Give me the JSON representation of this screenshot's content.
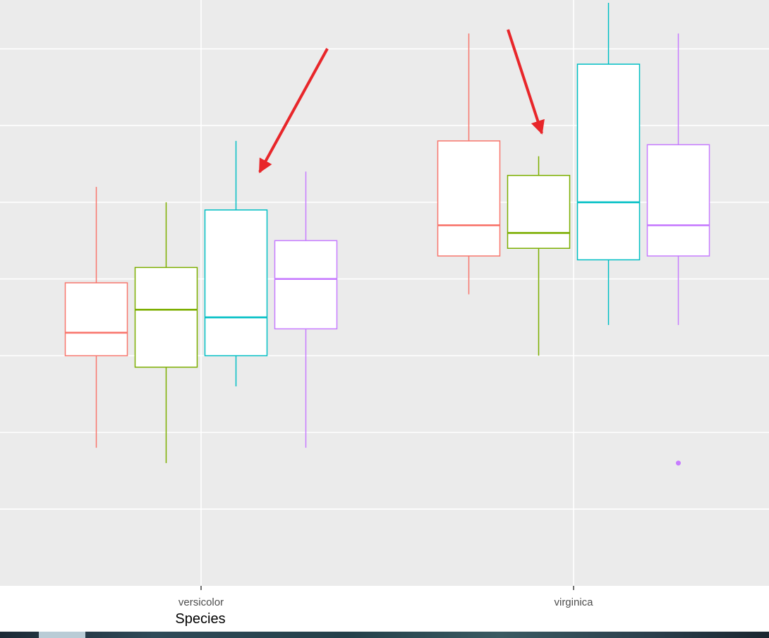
{
  "chart_data": {
    "type": "boxplot",
    "xlabel": "Species",
    "categories": [
      "versicolor",
      "virginica"
    ],
    "series_colors": [
      "#F8766D",
      "#7CAE00",
      "#00BFC4",
      "#C77CFF"
    ],
    "ylim": [
      0,
      7.6
    ],
    "grid": true,
    "boxes": [
      {
        "category": "versicolor",
        "series_index": 0,
        "lower_whisker": 1.8,
        "q1": 3.0,
        "median": 3.3,
        "q3": 3.95,
        "upper_whisker": 5.2
      },
      {
        "category": "versicolor",
        "series_index": 1,
        "lower_whisker": 1.6,
        "q1": 2.85,
        "median": 3.6,
        "q3": 4.15,
        "upper_whisker": 5.0
      },
      {
        "category": "versicolor",
        "series_index": 2,
        "lower_whisker": 2.6,
        "q1": 3.0,
        "median": 3.5,
        "q3": 4.9,
        "upper_whisker": 5.8
      },
      {
        "category": "versicolor",
        "series_index": 3,
        "lower_whisker": 1.8,
        "q1": 3.35,
        "median": 4.0,
        "q3": 4.5,
        "upper_whisker": 5.4
      },
      {
        "category": "virginica",
        "series_index": 0,
        "lower_whisker": 3.8,
        "q1": 4.3,
        "median": 4.7,
        "q3": 5.8,
        "upper_whisker": 7.2
      },
      {
        "category": "virginica",
        "series_index": 1,
        "lower_whisker": 3.0,
        "q1": 4.4,
        "median": 4.6,
        "q3": 5.35,
        "upper_whisker": 5.6
      },
      {
        "category": "virginica",
        "series_index": 2,
        "lower_whisker": 3.4,
        "q1": 4.25,
        "median": 5.0,
        "q3": 6.8,
        "upper_whisker": 7.6
      },
      {
        "category": "virginica",
        "series_index": 3,
        "lower_whisker": 3.4,
        "q1": 4.3,
        "median": 4.7,
        "q3": 5.75,
        "upper_whisker": 7.2
      }
    ],
    "outliers": [
      {
        "category": "virginica",
        "series_index": 3,
        "value": 1.6
      }
    ],
    "annotations": [
      {
        "type": "arrow",
        "color": "#E8262A",
        "points_to": {
          "category": "versicolor",
          "series_index": 2
        }
      },
      {
        "type": "arrow",
        "color": "#E8262A",
        "points_to": {
          "category": "virginica",
          "series_index": 1
        }
      }
    ]
  }
}
